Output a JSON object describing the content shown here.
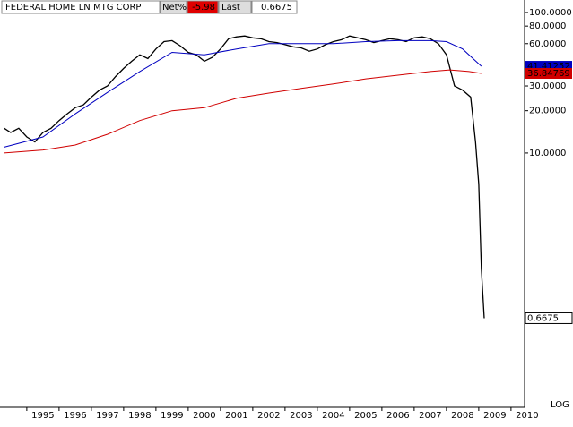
{
  "chart_data": {
    "type": "line",
    "title": "FEDERAL HOME LN MTG CORP",
    "net_label": "Net%",
    "net_value": -5.98,
    "last_label": "Last",
    "scale_label": "LOG",
    "log_scale": true,
    "xlim": [
      1993.67,
      2009.92
    ],
    "xticks": [
      1995,
      1996,
      1997,
      1998,
      1999,
      2000,
      2001,
      2002,
      2003,
      2004,
      2005,
      2006,
      2007,
      2008,
      2009,
      2010
    ],
    "ylim": [
      0.155,
      122.7
    ],
    "yticks": [
      {
        "value": 100,
        "label": "100.0000"
      },
      {
        "value": 80,
        "label": "80.0000"
      },
      {
        "value": 60,
        "label": "60.0000"
      },
      {
        "value": 30,
        "label": "30.0000"
      },
      {
        "value": 20,
        "label": "20.0000"
      },
      {
        "value": 10,
        "label": "10.0000"
      }
    ],
    "series": [
      {
        "color": "#000000",
        "x": [
          1993.8,
          1994.0,
          1994.25,
          1994.5,
          1994.75,
          1995.0,
          1995.25,
          1995.5,
          1995.75,
          1996.0,
          1996.25,
          1996.5,
          1996.75,
          1997.0,
          1997.25,
          1997.5,
          1997.75,
          1998.0,
          1998.25,
          1998.5,
          1998.75,
          1999.0,
          1999.25,
          1999.5,
          1999.75,
          2000.0,
          2000.25,
          2000.5,
          2000.75,
          2001.0,
          2001.25,
          2001.5,
          2001.75,
          2002.0,
          2002.25,
          2002.5,
          2002.75,
          2003.0,
          2003.25,
          2003.5,
          2003.75,
          2004.0,
          2004.25,
          2004.5,
          2004.75,
          2005.0,
          2005.25,
          2005.5,
          2005.75,
          2006.0,
          2006.25,
          2006.5,
          2006.75,
          2007.0,
          2007.25,
          2007.5,
          2007.75,
          2008.0,
          2008.25,
          2008.4,
          2008.5,
          2008.58,
          2008.67
        ],
        "values": [
          15,
          14,
          15,
          13,
          12,
          14,
          15,
          17,
          19,
          21,
          22,
          25,
          28,
          30,
          35,
          40,
          45,
          50,
          47,
          55,
          62,
          63,
          58,
          52,
          50,
          45,
          48,
          55,
          65,
          67,
          68,
          66,
          65,
          62,
          61,
          59,
          57,
          56,
          53,
          55,
          59,
          62,
          64,
          68,
          66,
          64,
          61,
          63,
          65,
          64,
          62,
          66,
          67,
          65,
          60,
          50,
          30,
          28,
          25,
          12,
          6,
          1.5,
          0.6675
        ]
      },
      {
        "color": "#0000c0",
        "x": [
          1993.8,
          1995.0,
          1996.0,
          1997.0,
          1998.0,
          1999.0,
          2000.0,
          2001.0,
          2002.0,
          2003.0,
          2004.0,
          2005.0,
          2006.0,
          2007.0,
          2007.5,
          2008.0,
          2008.58
        ],
        "values": [
          11,
          13,
          19,
          27,
          38,
          52,
          50,
          55,
          60,
          60,
          60,
          62,
          63,
          63,
          62,
          55,
          41.41252
        ]
      },
      {
        "color": "#d00000",
        "x": [
          1993.8,
          1995.0,
          1996.0,
          1997.0,
          1998.0,
          1999.0,
          2000.0,
          2001.0,
          2002.0,
          2003.0,
          2004.0,
          2005.0,
          2006.0,
          2007.0,
          2007.6,
          2008.2,
          2008.58
        ],
        "values": [
          10,
          10.5,
          11.4,
          13.6,
          17,
          20,
          21,
          24.5,
          26.7,
          28.8,
          31,
          33.7,
          35.8,
          38,
          39,
          38,
          36.84769
        ]
      }
    ]
  }
}
